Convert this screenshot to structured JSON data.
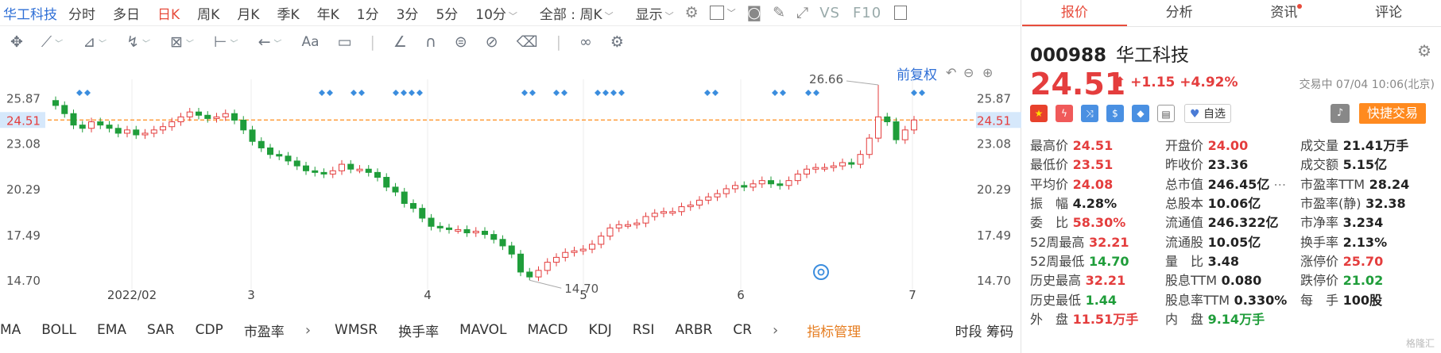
{
  "topbar": {
    "stock_name": "华工科技",
    "periods": [
      "分时",
      "多日",
      "日K",
      "周K",
      "月K",
      "季K",
      "年K",
      "1分",
      "3分",
      "5分",
      "10分"
    ],
    "active_period": "日K",
    "adjust_select": "全部 : 周K",
    "display_select": "显示",
    "vs_label": "VS",
    "f10_label": "F10"
  },
  "chart": {
    "fq_label": "前复权",
    "price_ticks": [
      "25.87",
      "24.51",
      "23.08",
      "20.29",
      "17.49",
      "14.70"
    ],
    "x_labels": [
      "2022/02",
      "3",
      "4",
      "5",
      "6",
      "7"
    ],
    "high_label": "26.66",
    "low_label": "14.70",
    "current_price_tag": "24.51",
    "colors": {
      "up": "#e43d3d",
      "down": "#1f9d3a",
      "ref_line": "#ff8c1a",
      "marker": "#3b8dde"
    }
  },
  "chart_data": {
    "type": "candlestick",
    "ylim": [
      13.4,
      27.0
    ],
    "x_ticks": [
      "2022/02",
      "3",
      "4",
      "5",
      "6",
      "7"
    ],
    "current_price": 24.51,
    "period_high": 26.66,
    "period_low": 14.7,
    "candles_close_approx": [
      25.4,
      24.9,
      24.2,
      24.0,
      24.4,
      24.2,
      24.0,
      23.7,
      23.9,
      23.6,
      23.7,
      23.9,
      24.1,
      24.4,
      24.7,
      25.0,
      24.8,
      24.6,
      24.7,
      24.9,
      24.5,
      23.9,
      23.2,
      22.8,
      22.4,
      22.3,
      22.0,
      21.7,
      21.4,
      21.3,
      21.2,
      21.4,
      21.8,
      21.5,
      21.5,
      21.3,
      21.0,
      20.4,
      20.1,
      19.4,
      19.1,
      18.5,
      18.0,
      17.9,
      17.8,
      17.8,
      17.6,
      17.7,
      17.5,
      17.2,
      16.8,
      16.3,
      15.2,
      14.9,
      15.3,
      15.8,
      16.1,
      16.4,
      16.5,
      16.6,
      16.9,
      17.4,
      17.9,
      18.1,
      18.1,
      18.2,
      18.6,
      18.8,
      18.9,
      18.9,
      19.2,
      19.3,
      19.6,
      19.8,
      20.0,
      20.3,
      20.5,
      20.4,
      20.6,
      20.8,
      20.6,
      20.5,
      20.8,
      21.2,
      21.5,
      21.6,
      21.6,
      21.7,
      21.9,
      21.8,
      22.4,
      23.4,
      24.7,
      24.4,
      23.3,
      23.9,
      24.51
    ]
  },
  "indicators": {
    "items": [
      "MA",
      "BOLL",
      "EMA",
      "SAR",
      "CDP",
      "市盈率"
    ],
    "items2": [
      "WMSR",
      "换手率",
      "MAVOL",
      "MACD",
      "KDJ",
      "RSI",
      "ARBR",
      "CR"
    ],
    "mgmt": "指标管理",
    "right": "时段 筹码"
  },
  "quote": {
    "tabs": [
      "报价",
      "分析",
      "资讯",
      "评论"
    ],
    "code": "000988",
    "name": "华工科技",
    "price": "24.51",
    "change": "+1.15",
    "change_pct": "+4.92%",
    "status": "交易中 07/04 10:06(北京)",
    "watch": "自选",
    "fast_trade": "快捷交易",
    "rows": [
      [
        [
          "最高价",
          "24.51",
          "red"
        ],
        [
          "开盘价",
          "24.00",
          "red"
        ],
        [
          "成交量",
          "21.41万手",
          "blk"
        ]
      ],
      [
        [
          "最低价",
          "23.51",
          "red"
        ],
        [
          "昨收价",
          "23.36",
          "blk"
        ],
        [
          "成交额",
          "5.15亿",
          "blk"
        ]
      ],
      [
        [
          "平均价",
          "24.08",
          "red"
        ],
        [
          "总市值",
          "246.45亿",
          "blk"
        ],
        [
          "市盈率TTM",
          "28.24",
          "blk"
        ]
      ],
      [
        [
          "振　幅",
          "4.28%",
          "blk"
        ],
        [
          "总股本",
          "10.06亿",
          "blk"
        ],
        [
          "市盈率(静)",
          "32.38",
          "blk"
        ]
      ],
      [
        [
          "委　比",
          "58.30%",
          "red"
        ],
        [
          "流通值",
          "246.322亿",
          "blk"
        ],
        [
          "市净率",
          "3.234",
          "blk"
        ]
      ],
      [
        [
          "52周最高",
          "32.21",
          "red"
        ],
        [
          "流通股",
          "10.05亿",
          "blk"
        ],
        [
          "换手率",
          "2.13%",
          "blk"
        ]
      ],
      [
        [
          "52周最低",
          "14.70",
          "green"
        ],
        [
          "量　比",
          "3.48",
          "blk"
        ],
        [
          "涨停价",
          "25.70",
          "red"
        ]
      ],
      [
        [
          "历史最高",
          "32.21",
          "red"
        ],
        [
          "股息TTM",
          "0.080",
          "blk"
        ],
        [
          "跌停价",
          "21.02",
          "green"
        ]
      ],
      [
        [
          "历史最低",
          "1.44",
          "green"
        ],
        [
          "股息率TTM",
          "0.330%",
          "blk"
        ],
        [
          "每　手",
          "100股",
          "blk"
        ]
      ],
      [
        [
          "外　盘",
          "11.51万手",
          "red"
        ],
        [
          "内　盘",
          "9.14万手",
          "green"
        ],
        [
          "",
          "",
          "blk"
        ]
      ]
    ],
    "watermark": "格隆汇"
  }
}
